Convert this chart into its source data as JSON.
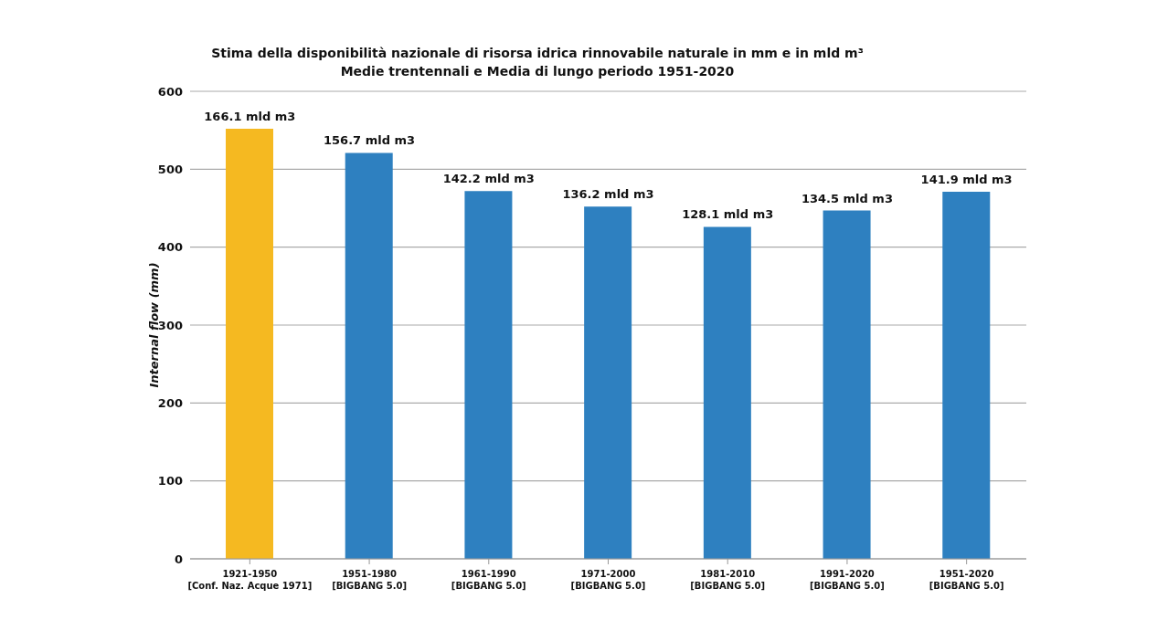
{
  "chart_data": {
    "type": "bar",
    "title": "Stima della disponibilità nazionale di risorsa idrica rinnovabile naturale in mm e in mld m³",
    "subtitle": "Medie trentennali e Media di lungo periodo 1951-2020",
    "ylabel": "Internal flow (mm)",
    "categories": [
      "1921-1950\n[Conf. Naz. Acque 1971]",
      "1951-1980\n[BIGBANG 5.0]",
      "1961-1990\n[BIGBANG 5.0]",
      "1971-2000\n[BIGBANG 5.0]",
      "1981-2010\n[BIGBANG 5.0]",
      "1991-2020\n[BIGBANG 5.0]",
      "1951-2020\n[BIGBANG 5.0]"
    ],
    "values": [
      552,
      521,
      472,
      452,
      426,
      447,
      471
    ],
    "colors": [
      "#f5b921",
      "#2e80c0",
      "#2e80c0",
      "#2e80c0",
      "#2e80c0",
      "#2e80c0",
      "#2e80c0"
    ],
    "annotations": [
      {
        "text": "166.1 mld m3",
        "x": "1921-1950\n[Conf. Naz. Acque 1971]",
        "y": 552
      },
      {
        "text": "156.7 mld m3",
        "x": "1951-1980\n[BIGBANG 5.0]",
        "y": 521
      },
      {
        "text": "142.2 mld m3",
        "x": "1961-1990\n[BIGBANG 5.0]",
        "y": 472
      },
      {
        "text": "136.2 mld m3",
        "x": "1971-2000\n[BIGBANG 5.0]",
        "y": 452
      },
      {
        "text": "128.1 mld m3",
        "x": "1981-2010\n[BIGBANG 5.0]",
        "y": 426
      },
      {
        "text": "134.5 mld m3",
        "x": "1991-2020\n[BIGBANG 5.0]",
        "y": 447
      },
      {
        "text": "141.9 mld m3",
        "x": "1951-2020\n[BIGBANG 5.0]",
        "y": 471
      }
    ],
    "ylim": [
      0,
      600
    ],
    "yticks": [
      0,
      100,
      200,
      300,
      400,
      500,
      600
    ],
    "grid": "y",
    "legend": false
  }
}
